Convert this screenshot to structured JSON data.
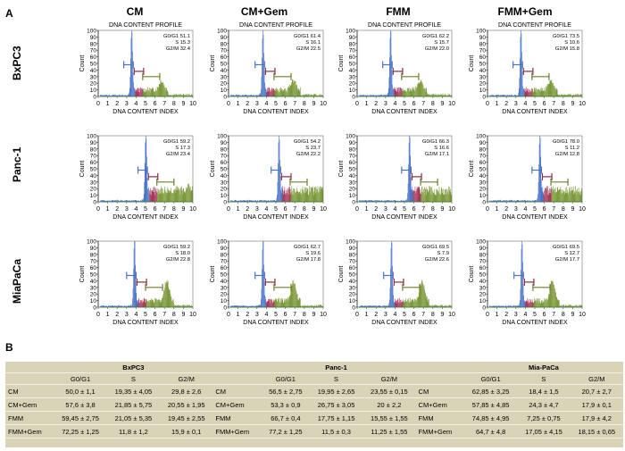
{
  "panels": {
    "a": "A",
    "b": "B"
  },
  "columns": [
    "CM",
    "CM+Gem",
    "FMM",
    "FMM+Gem"
  ],
  "rows": [
    "BxPC3",
    "Panc-1",
    "MiaPaCa"
  ],
  "plot_title": "DNA CONTENT PROFILE",
  "x_axis_label": "DNA CONTENT INDEX",
  "y_axis_label": "Count",
  "stat_labels": {
    "g0g1": "G0/G1",
    "s": "S",
    "g2m": "G2/M"
  },
  "colors": {
    "g0g1": "#4a74c9",
    "s": "#a8385a",
    "g2m": "#7d9a3c",
    "bracket_g0": "#4a74c9",
    "bracket_s": "#8a2a44",
    "bracket_g2": "#6f7d2c",
    "axis_tick": "#2e9c2e"
  },
  "chart_data": {
    "type": "histogram",
    "x_ticks": [
      0,
      1,
      2,
      3,
      4,
      5,
      6,
      7,
      8,
      9,
      10
    ],
    "y_ticks": [
      0,
      10,
      20,
      30,
      40,
      50,
      60,
      70,
      80,
      90,
      100
    ],
    "xlim": [
      0,
      10
    ],
    "ylim": [
      0,
      100
    ],
    "cells": [
      {
        "row": "BxPC3",
        "column": "CM",
        "title": "DNA CONTENT PROFILE",
        "peak": 3.5,
        "g0g1": "51.1",
        "s": "15.3",
        "g2m": "32.4"
      },
      {
        "row": "BxPC3",
        "column": "CM+Gem",
        "title": "DNA CONTENT PROFILE",
        "peak": 3.6,
        "g0g1": "61.4",
        "s": "16.1",
        "g2m": "22.5"
      },
      {
        "row": "BxPC3",
        "column": "FMM",
        "title": "DNA CONTENT PROFILE",
        "peak": 3.5,
        "g0g1": "62.2",
        "s": "15.7",
        "g2m": "22.0"
      },
      {
        "row": "BxPC3",
        "column": "FMM+Gem",
        "title": "DNA CONTENT PROFILE",
        "peak": 3.5,
        "g0g1": "73.5",
        "s": "10.6",
        "g2m": "15.8"
      },
      {
        "row": "Panc-1",
        "column": "CM",
        "title": "",
        "peak": 5.0,
        "g0g1": "59.2",
        "s": "17.3",
        "g2m": "23.4"
      },
      {
        "row": "Panc-1",
        "column": "CM+Gem",
        "title": "",
        "peak": 5.3,
        "g0g1": "54.2",
        "s": "23.7",
        "g2m": "22.2"
      },
      {
        "row": "Panc-1",
        "column": "FMM",
        "title": "",
        "peak": 5.5,
        "g0g1": "66.3",
        "s": "16.6",
        "g2m": "17.1"
      },
      {
        "row": "Panc-1",
        "column": "FMM+Gem",
        "title": "",
        "peak": 5.5,
        "g0g1": "78.0",
        "s": "11.2",
        "g2m": "12.8"
      },
      {
        "row": "MiaPaCa",
        "column": "CM",
        "title": "",
        "peak": 3.8,
        "g0g1": "59.2",
        "s": "18.0",
        "g2m": "22.8"
      },
      {
        "row": "MiaPaCa",
        "column": "CM+Gem",
        "title": "",
        "peak": 3.6,
        "g0g1": "62.7",
        "s": "19.6",
        "g2m": "17.8"
      },
      {
        "row": "MiaPaCa",
        "column": "FMM",
        "title": "",
        "peak": 3.6,
        "g0g1": "69.5",
        "s": "7.9",
        "g2m": "22.6"
      },
      {
        "row": "MiaPaCa",
        "column": "FMM+Gem",
        "title": "",
        "peak": 3.6,
        "g0g1": "69.5",
        "s": "12.7",
        "g2m": "17.7"
      }
    ]
  },
  "table": {
    "groups": [
      "BxPC3",
      "Panc-1",
      "Mia-PaCa"
    ],
    "sub_headers": [
      "G0/G1",
      "S",
      "G2/M"
    ],
    "rows": [
      {
        "label": "CM",
        "values": [
          "50,0 ± 1,1",
          "19,35 ± 4,05",
          "29,8 ± 2,6",
          "56,5 ± 2,75",
          "19,95 ± 2,65",
          "23,55 ± 0,15",
          "62,85 ± 3,25",
          "18,4 ± 1,5",
          "20,7 ± 2,7"
        ]
      },
      {
        "label": "CM+Gem",
        "values": [
          "57,6 ± 3,8",
          "21,85 ± 5,75",
          "20,55 ± 1,95",
          "53,3 ± 0,9",
          "26,75 ± 3,05",
          "20 ± 2,2",
          "57,85 ± 4,85",
          "24,3 ± 4,7",
          "17,9 ± 0,1"
        ]
      },
      {
        "label": "FMM",
        "values": [
          "59,45 ± 2,75",
          "21,05 ± 5,35",
          "19,45 ± 2,55",
          "66,7 ± 0,4",
          "17,75 ± 1,15",
          "15,55 ± 1,55",
          "74,85 ± 4,95",
          "7,25 ± 0,75",
          "17,9 ± 4,2"
        ]
      },
      {
        "label": "FMM+Gem",
        "values": [
          "72,25 ± 1,25",
          "11,8 ± 1,2",
          "15,9 ± 0,1",
          "77,2 ± 1,25",
          "11,5 ± 0,3",
          "11,25 ± 1,55",
          "64,7 ± 4,8",
          "17,05 ± 4,15",
          "18,15 ± 0,65"
        ]
      }
    ]
  }
}
